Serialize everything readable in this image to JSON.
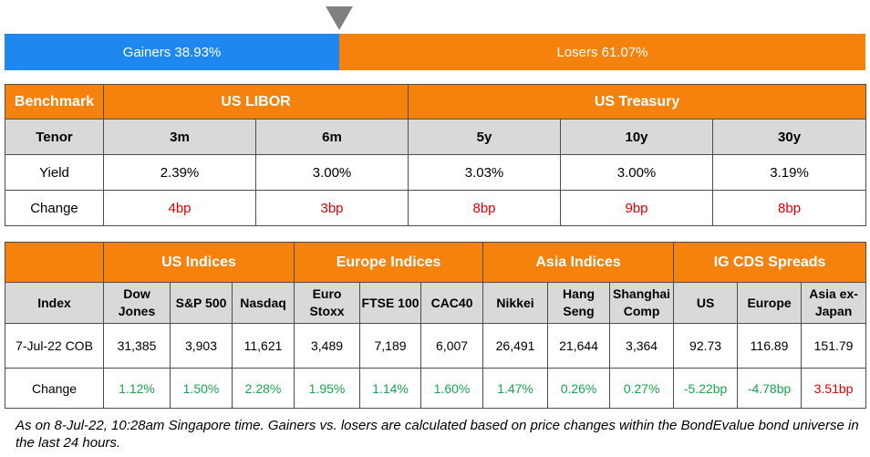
{
  "ratio": {
    "gainers_label": "Gainers 38.93%",
    "losers_label": "Losers 61.07%",
    "gainers_fraction": 0.3893,
    "colors": {
      "gainers": "#1e87f0",
      "losers": "#f5820d"
    }
  },
  "rates_table": {
    "header": {
      "benchmark": "Benchmark",
      "libor": "US LIBOR",
      "treasury": "US Treasury"
    },
    "tenor_row": {
      "label": "Tenor",
      "cells": [
        "3m",
        "6m",
        "5y",
        "10y",
        "30y"
      ]
    },
    "yield_row": {
      "label": "Yield",
      "cells": [
        "2.39%",
        "3.00%",
        "3.03%",
        "3.00%",
        "3.19%"
      ]
    },
    "change_row": {
      "label": "Change",
      "cells": [
        "4bp",
        "3bp",
        "8bp",
        "9bp",
        "8bp"
      ]
    }
  },
  "indices_table": {
    "groups": {
      "us": "US Indices",
      "europe": "Europe Indices",
      "asia": "Asia Indices",
      "cds": "IG CDS Spreads"
    },
    "sub_row": {
      "label": "Index",
      "cells": [
        "Dow Jones",
        "S&P 500",
        "Nasdaq",
        "Euro Stoxx",
        "FTSE 100",
        "CAC40",
        "Nikkei",
        "Hang Seng",
        "Shanghai Comp",
        "US",
        "Europe",
        "Asia ex-Japan"
      ]
    },
    "value_row": {
      "label": "7-Jul-22 COB",
      "cells": [
        "31,385",
        "3,903",
        "11,621",
        "3,489",
        "7,189",
        "6,007",
        "26,491",
        "21,644",
        "3,364",
        "92.73",
        "116.89",
        "151.79"
      ]
    },
    "change_row": {
      "label": "Change",
      "cells": [
        "1.12%",
        "1.50%",
        "2.28%",
        "1.95%",
        "1.14%",
        "1.60%",
        "1.47%",
        "0.26%",
        "0.27%",
        "-5.22bp",
        "-4.78bp",
        "3.51bp"
      ],
      "colors": [
        "green",
        "green",
        "green",
        "green",
        "green",
        "green",
        "green",
        "green",
        "green",
        "green",
        "green",
        "red"
      ]
    }
  },
  "footnote": "As on 8-Jul-22, 10:28am Singapore time. Gainers vs. losers are calculated based on price changes within the BondEvalue bond universe in the last 24 hours."
}
